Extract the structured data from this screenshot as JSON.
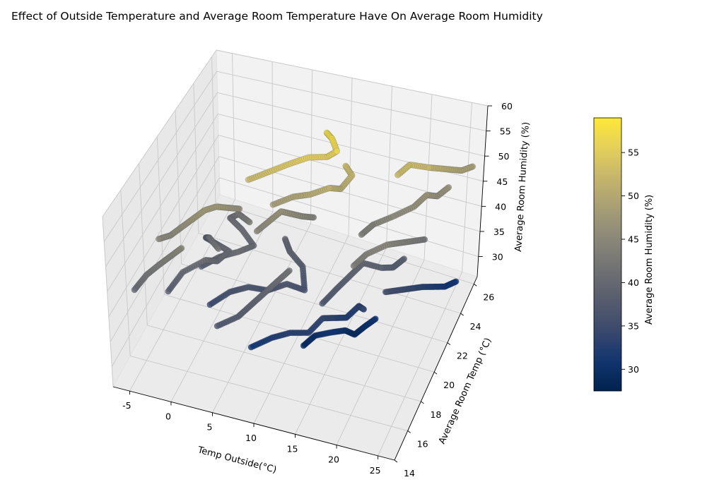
{
  "chart_data": {
    "type": "scatter",
    "title": "Effect of Outside Temperature and Average Room Temperature Have On Average Room Humidity",
    "xlabel": "Temp Outside(°C)",
    "ylabel": "Average Room Temp (°C)",
    "zlabel": "Average Room Humidity (%)",
    "colorbar_label": "Average Room Humidity (%)",
    "colormap": "cividis",
    "colormap_stops": [
      "#00224e",
      "#123570",
      "#3b496c",
      "#575d6d",
      "#707173",
      "#8a8779",
      "#a69d75",
      "#c4b56c",
      "#e4cf5b",
      "#fee838"
    ],
    "x_ticks": [
      "-5",
      "0",
      "5",
      "10",
      "15",
      "20",
      "25"
    ],
    "y_ticks": [
      "14",
      "16",
      "18",
      "20",
      "22",
      "24",
      "26"
    ],
    "z_ticks": [
      "30",
      "35",
      "40",
      "45",
      "50",
      "55",
      "60"
    ],
    "colorbar_ticks": [
      "30",
      "35",
      "40",
      "45",
      "50",
      "55"
    ],
    "xlim": [
      -7,
      27
    ],
    "ylim": [
      14,
      26.5
    ],
    "zlim": [
      26,
      60
    ],
    "clim": [
      27.5,
      59
    ],
    "grid": true,
    "paths": [
      {
        "points": [
          [
            -3,
            17,
            38
          ],
          [
            -2,
            17.8,
            40
          ],
          [
            0,
            18.6,
            41
          ],
          [
            1,
            19,
            40
          ],
          [
            2,
            19.5,
            41
          ],
          [
            0,
            20,
            40
          ],
          [
            -2,
            20.5,
            39
          ],
          [
            -1,
            20,
            41
          ],
          [
            1,
            19.2,
            42
          ]
        ]
      },
      {
        "points": [
          [
            -1,
            19,
            38
          ],
          [
            1,
            19.3,
            40
          ],
          [
            3,
            19.6,
            41
          ],
          [
            4,
            20.5,
            40
          ],
          [
            2,
            21,
            41
          ],
          [
            0,
            21.5,
            41
          ],
          [
            1,
            21.6,
            42
          ],
          [
            3,
            21,
            43
          ]
        ]
      },
      {
        "points": [
          [
            3,
            21,
            52
          ],
          [
            5,
            21.5,
            53
          ],
          [
            7,
            22,
            54
          ],
          [
            9,
            22.4,
            55
          ],
          [
            11,
            22.7,
            55
          ],
          [
            12,
            22.9,
            56
          ],
          [
            11,
            23.3,
            57
          ],
          [
            10,
            23.6,
            57
          ]
        ]
      },
      {
        "points": [
          [
            1,
            18,
            34
          ],
          [
            3,
            18.5,
            36
          ],
          [
            5,
            18.8,
            37
          ],
          [
            7,
            19.2,
            36
          ],
          [
            9,
            19.6,
            37
          ],
          [
            11,
            19.8,
            36
          ],
          [
            10,
            20.6,
            38
          ],
          [
            8,
            21,
            39
          ],
          [
            7,
            21.4,
            40
          ]
        ]
      },
      {
        "points": [
          [
            6,
            21,
            48
          ],
          [
            8,
            21.5,
            49
          ],
          [
            10,
            21.6,
            50
          ],
          [
            12,
            22,
            51
          ],
          [
            13,
            22.4,
            50
          ],
          [
            14,
            22.8,
            52
          ],
          [
            13,
            23,
            53
          ]
        ]
      },
      {
        "points": [
          [
            7,
            17,
            31
          ],
          [
            9,
            17.6,
            32
          ],
          [
            11,
            17.9,
            33
          ],
          [
            13,
            18.2,
            33
          ],
          [
            14,
            19,
            34
          ],
          [
            15,
            19.5,
            33
          ],
          [
            16,
            20,
            32
          ],
          [
            17,
            20.6,
            33
          ],
          [
            18,
            20.2,
            34
          ]
        ]
      },
      {
        "points": [
          [
            12,
            18.5,
            29
          ],
          [
            13,
            19,
            30
          ],
          [
            15,
            19.2,
            31
          ],
          [
            16,
            19.8,
            30
          ],
          [
            17,
            20,
            29
          ],
          [
            18,
            20.4,
            30
          ],
          [
            19,
            20.7,
            31
          ]
        ]
      },
      {
        "points": [
          [
            14,
            19,
            37
          ],
          [
            15,
            19.8,
            38
          ],
          [
            16,
            20.5,
            39
          ],
          [
            17,
            21.2,
            40
          ],
          [
            19,
            21.5,
            39
          ],
          [
            20,
            22,
            38
          ],
          [
            21,
            22.4,
            39
          ]
        ]
      },
      {
        "points": [
          [
            16,
            22,
            43
          ],
          [
            17,
            22.5,
            44
          ],
          [
            19,
            23,
            45
          ],
          [
            21,
            23.6,
            46
          ],
          [
            22,
            24.2,
            47
          ],
          [
            23,
            24.6,
            46
          ],
          [
            24,
            25,
            47
          ]
        ]
      },
      {
        "points": [
          [
            19,
            23.5,
            52
          ],
          [
            20,
            24,
            53
          ],
          [
            22,
            24.4,
            52
          ],
          [
            23,
            24.8,
            51
          ],
          [
            24,
            25.2,
            50
          ],
          [
            25,
            25.6,
            49
          ],
          [
            26,
            26,
            49
          ]
        ]
      },
      {
        "points": [
          [
            20,
            21,
            36
          ],
          [
            21,
            21.6,
            35
          ],
          [
            22,
            22.2,
            34
          ],
          [
            23,
            22.8,
            33
          ],
          [
            24,
            23.3,
            32
          ],
          [
            25,
            23.8,
            31
          ],
          [
            26,
            24.3,
            31
          ]
        ]
      },
      {
        "points": [
          [
            17,
            20,
            43
          ],
          [
            18,
            20.6,
            44
          ],
          [
            20,
            21.2,
            45
          ],
          [
            21,
            21.8,
            44
          ],
          [
            22,
            22.4,
            43
          ],
          [
            23,
            23,
            42
          ]
        ]
      },
      {
        "points": [
          [
            -5,
            18,
            45
          ],
          [
            -4,
            18.4,
            45
          ],
          [
            -3,
            18.8,
            46
          ],
          [
            -2,
            19.2,
            47
          ],
          [
            -1,
            19.6,
            48
          ],
          [
            0,
            20,
            48
          ],
          [
            1,
            20.4,
            47
          ],
          [
            2,
            20.8,
            46
          ]
        ]
      },
      {
        "points": [
          [
            -6,
            16,
            40
          ],
          [
            -5,
            16.5,
            42
          ],
          [
            -4,
            17,
            43
          ],
          [
            -3,
            17.4,
            44
          ],
          [
            -2,
            17.8,
            45
          ]
        ]
      },
      {
        "points": [
          [
            4,
            16,
            37
          ],
          [
            6,
            16.6,
            38
          ],
          [
            7,
            17.2,
            39
          ],
          [
            8,
            17.8,
            40
          ],
          [
            9,
            18.4,
            41
          ],
          [
            10,
            19,
            42
          ]
        ]
      },
      {
        "points": [
          [
            5,
            20,
            45
          ],
          [
            6,
            20.5,
            46
          ],
          [
            7,
            21,
            47
          ],
          [
            8,
            21.3,
            46
          ],
          [
            9,
            21.6,
            45
          ],
          [
            10,
            22,
            44
          ]
        ]
      }
    ]
  }
}
